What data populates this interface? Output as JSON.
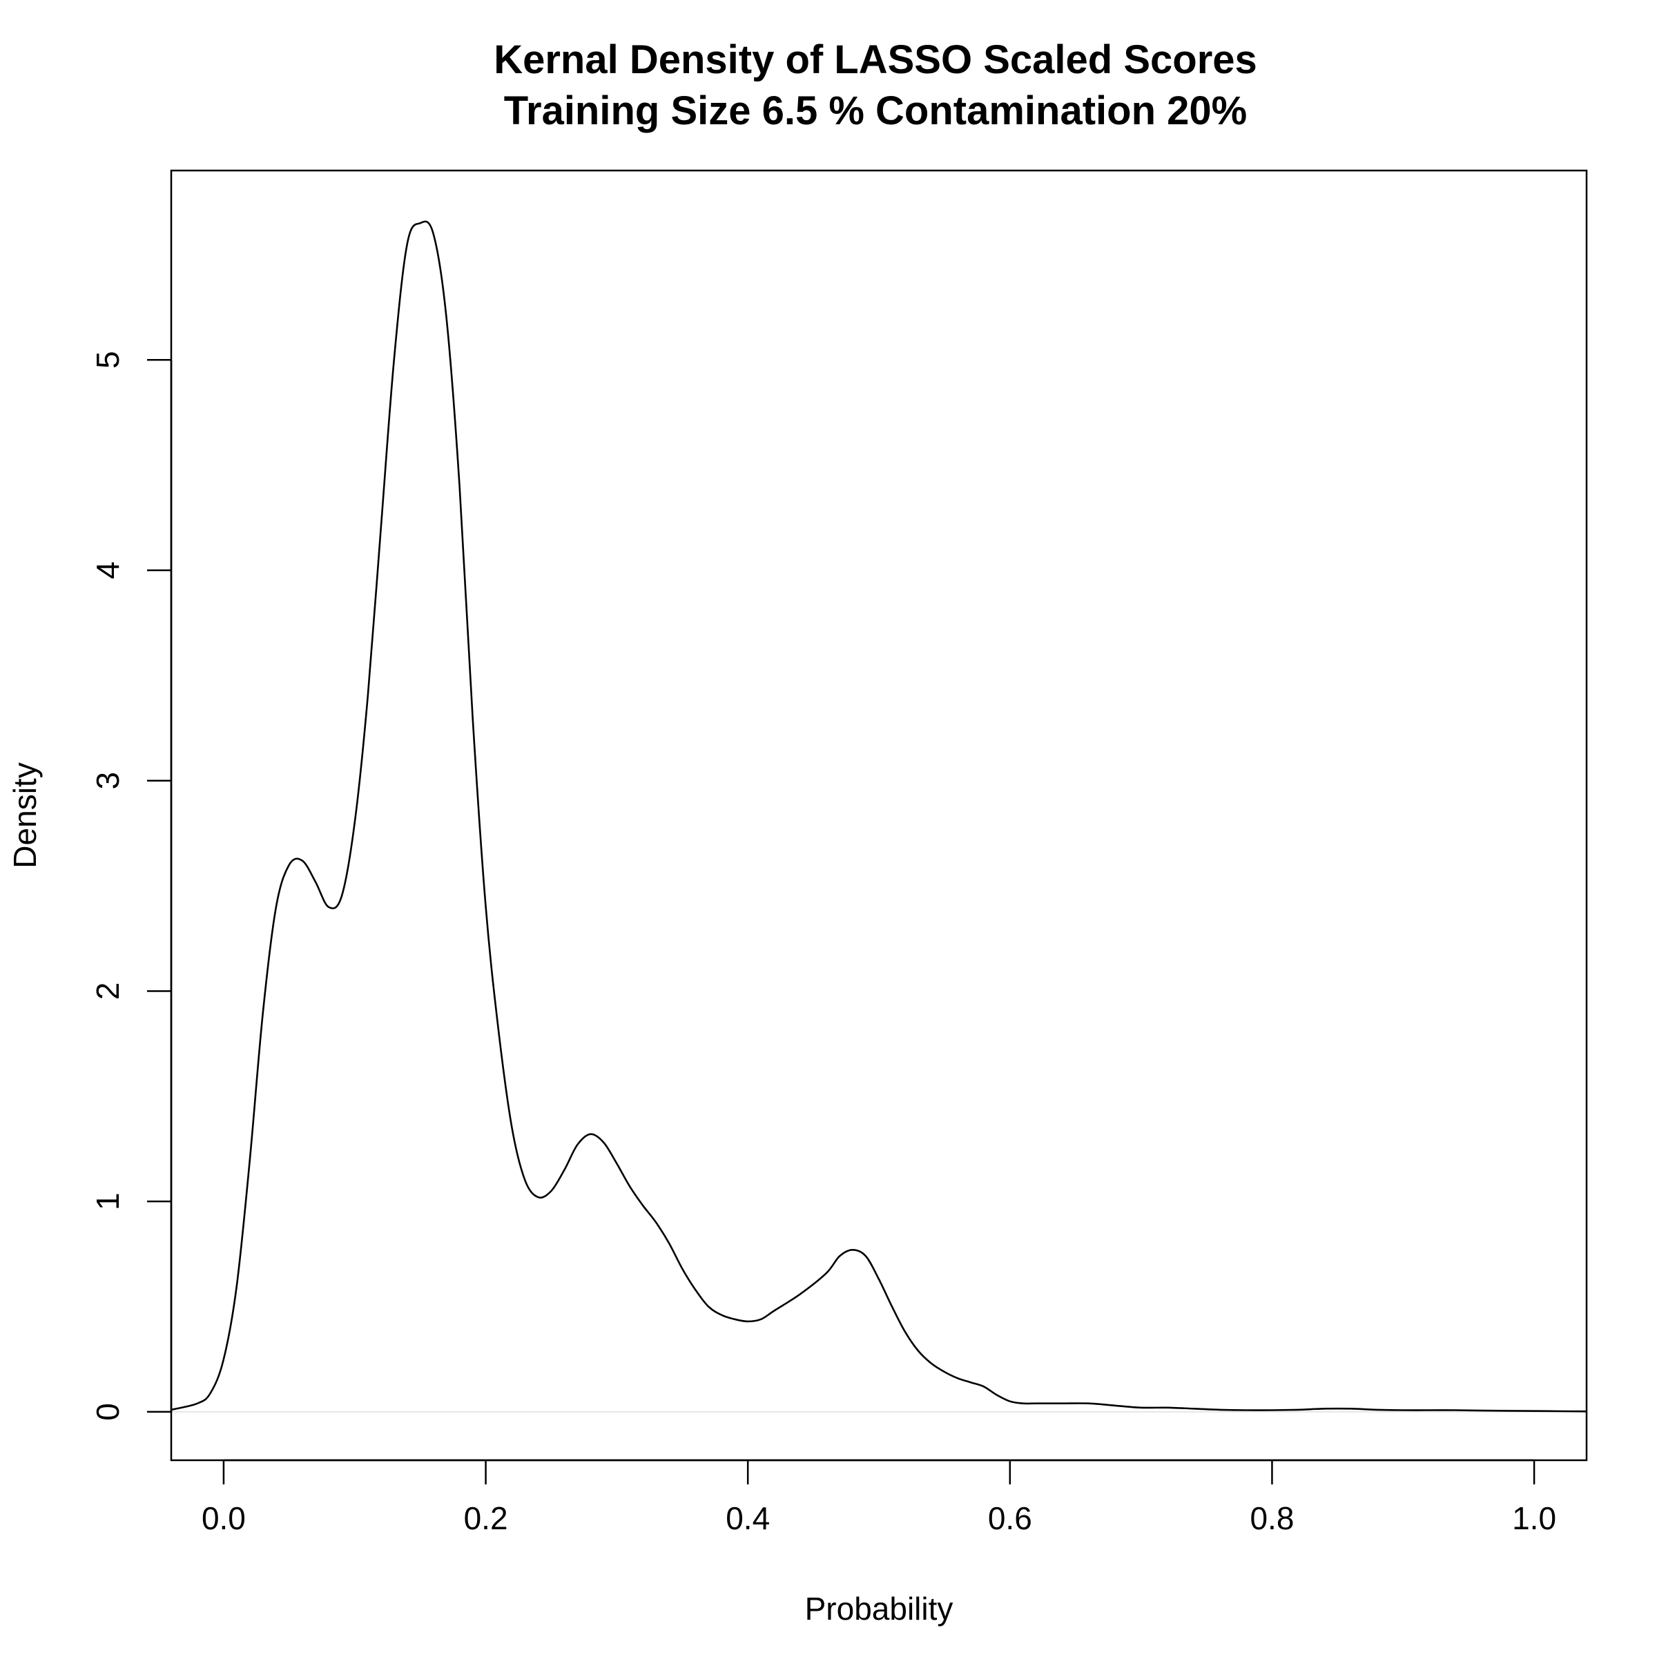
{
  "chart_data": {
    "type": "line",
    "title": "Kernal Density of LASSO Scaled Scores",
    "subtitle": "Training Size 6.5 % Contamination 20%",
    "xlabel": "Probability",
    "ylabel": "Density",
    "xlim": [
      -0.04,
      1.04
    ],
    "ylim": [
      -0.23,
      5.9
    ],
    "x_ticks": [
      0.0,
      0.2,
      0.4,
      0.6,
      0.8,
      1.0
    ],
    "x_tick_labels": [
      "0.0",
      "0.2",
      "0.4",
      "0.6",
      "0.8",
      "1.0"
    ],
    "y_ticks": [
      0,
      1,
      2,
      3,
      4,
      5
    ],
    "y_tick_labels": [
      "0",
      "1",
      "2",
      "3",
      "4",
      "5"
    ],
    "grid": false,
    "baseline_y": 0,
    "colors": {
      "line": "#000000",
      "baseline": "#e6e6e6",
      "frame": "#000000"
    },
    "series": [
      {
        "x": [
          -0.04,
          -0.02,
          -0.01,
          0.0,
          0.01,
          0.02,
          0.03,
          0.04,
          0.05,
          0.06,
          0.07,
          0.08,
          0.09,
          0.1,
          0.11,
          0.12,
          0.13,
          0.14,
          0.15,
          0.16,
          0.17,
          0.18,
          0.19,
          0.2,
          0.21,
          0.22,
          0.23,
          0.24,
          0.25,
          0.26,
          0.27,
          0.28,
          0.29,
          0.3,
          0.31,
          0.32,
          0.33,
          0.34,
          0.35,
          0.36,
          0.37,
          0.38,
          0.39,
          0.4,
          0.41,
          0.42,
          0.44,
          0.46,
          0.47,
          0.48,
          0.49,
          0.5,
          0.51,
          0.52,
          0.53,
          0.54,
          0.55,
          0.56,
          0.57,
          0.58,
          0.59,
          0.6,
          0.61,
          0.62,
          0.64,
          0.66,
          0.68,
          0.7,
          0.72,
          0.74,
          0.76,
          0.78,
          0.8,
          0.82,
          0.84,
          0.86,
          0.88,
          0.9,
          0.92,
          0.94,
          0.96,
          0.98,
          1.0,
          1.02,
          1.04
        ],
        "y": [
          0.01,
          0.04,
          0.09,
          0.25,
          0.6,
          1.2,
          1.9,
          2.4,
          2.6,
          2.62,
          2.52,
          2.4,
          2.45,
          2.8,
          3.4,
          4.2,
          5.0,
          5.55,
          5.65,
          5.6,
          5.2,
          4.4,
          3.3,
          2.4,
          1.8,
          1.35,
          1.1,
          1.02,
          1.05,
          1.15,
          1.27,
          1.32,
          1.28,
          1.18,
          1.07,
          0.98,
          0.9,
          0.8,
          0.68,
          0.58,
          0.5,
          0.46,
          0.44,
          0.43,
          0.44,
          0.48,
          0.56,
          0.66,
          0.74,
          0.77,
          0.74,
          0.63,
          0.5,
          0.38,
          0.29,
          0.23,
          0.19,
          0.16,
          0.14,
          0.12,
          0.08,
          0.05,
          0.04,
          0.04,
          0.04,
          0.04,
          0.03,
          0.02,
          0.02,
          0.015,
          0.01,
          0.008,
          0.008,
          0.01,
          0.015,
          0.015,
          0.01,
          0.008,
          0.008,
          0.008,
          0.006,
          0.005,
          0.004,
          0.003,
          0.002
        ]
      }
    ]
  }
}
